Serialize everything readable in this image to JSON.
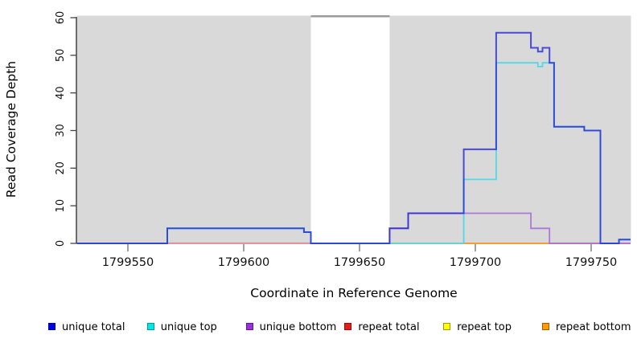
{
  "chart_data": {
    "type": "step-line",
    "title": "",
    "xlabel": "Coordinate in Reference Genome",
    "ylabel": "Read Coverage Depth",
    "x_ticks": [
      1799550,
      1799600,
      1799650,
      1799700,
      1799750
    ],
    "y_ticks": [
      0,
      10,
      20,
      30,
      40,
      50,
      60
    ],
    "x_range": [
      1799528,
      1799767
    ],
    "y_range": [
      0,
      60.5
    ],
    "panel_background": "#d9d9d9",
    "masked_region": {
      "from": 1799629,
      "to": 1799663,
      "fill": "#ffffff",
      "top_edge_color": "#9b9b9b"
    },
    "grid": "off",
    "legend_position": "bottom",
    "series": [
      {
        "name": "repeat total",
        "color": "#e04055",
        "opacity": 0.7,
        "width": 1.5,
        "points": [
          [
            1799528,
            0
          ],
          [
            1799767,
            0
          ]
        ]
      },
      {
        "name": "repeat top",
        "color": "#e8e838",
        "opacity": 0.8,
        "width": 1.5,
        "points": [
          [
            1799663,
            0
          ],
          [
            1799695,
            0
          ]
        ]
      },
      {
        "name": "repeat bottom",
        "color": "#ff9718",
        "opacity": 0.95,
        "width": 1.8,
        "points": [
          [
            1799695,
            0
          ],
          [
            1799732,
            0
          ]
        ]
      },
      {
        "name": "unique bottom",
        "color": "#a35fd6",
        "opacity": 0.8,
        "width": 1.8,
        "points": [
          [
            1799663,
            0
          ],
          [
            1799663,
            4
          ],
          [
            1799671,
            4
          ],
          [
            1799671,
            8
          ],
          [
            1799724,
            8
          ],
          [
            1799724,
            4
          ],
          [
            1799732,
            4
          ],
          [
            1799732,
            0
          ],
          [
            1799767,
            0
          ]
        ]
      },
      {
        "name": "unique top",
        "color": "#3cd7e8",
        "opacity": 0.85,
        "width": 1.8,
        "points": [
          [
            1799528,
            0
          ],
          [
            1799567,
            0
          ],
          [
            1799567,
            4
          ],
          [
            1799626,
            4
          ],
          [
            1799626,
            3
          ],
          [
            1799629,
            3
          ],
          [
            1799629,
            0
          ],
          [
            1799695,
            0
          ],
          [
            1799695,
            17
          ],
          [
            1799709,
            17
          ],
          [
            1799709,
            48
          ],
          [
            1799727,
            48
          ],
          [
            1799727,
            47
          ],
          [
            1799729,
            47
          ],
          [
            1799729,
            48
          ],
          [
            1799734,
            48
          ],
          [
            1799734,
            31
          ],
          [
            1799747,
            31
          ],
          [
            1799747,
            30
          ],
          [
            1799754,
            30
          ],
          [
            1799754,
            0
          ],
          [
            1799762,
            0
          ],
          [
            1799762,
            1
          ],
          [
            1799767,
            1
          ]
        ]
      },
      {
        "name": "unique total",
        "color": "#2022d6",
        "opacity": 0.78,
        "width": 2,
        "points": [
          [
            1799528,
            0
          ],
          [
            1799567,
            0
          ],
          [
            1799567,
            4
          ],
          [
            1799626,
            4
          ],
          [
            1799626,
            3
          ],
          [
            1799629,
            3
          ],
          [
            1799629,
            0
          ],
          [
            1799663,
            0
          ],
          [
            1799663,
            4
          ],
          [
            1799671,
            4
          ],
          [
            1799671,
            8
          ],
          [
            1799695,
            8
          ],
          [
            1799695,
            25
          ],
          [
            1799709,
            25
          ],
          [
            1799709,
            56
          ],
          [
            1799724,
            56
          ],
          [
            1799724,
            52
          ],
          [
            1799727,
            52
          ],
          [
            1799727,
            51
          ],
          [
            1799729,
            51
          ],
          [
            1799729,
            52
          ],
          [
            1799732,
            52
          ],
          [
            1799732,
            48
          ],
          [
            1799734,
            48
          ],
          [
            1799734,
            31
          ],
          [
            1799747,
            31
          ],
          [
            1799747,
            30
          ],
          [
            1799754,
            30
          ],
          [
            1799754,
            0
          ],
          [
            1799762,
            0
          ],
          [
            1799762,
            1
          ],
          [
            1799767,
            1
          ]
        ]
      }
    ],
    "legend": [
      {
        "label": "unique total",
        "fill": "#0000e5",
        "border": "#00009b"
      },
      {
        "label": "unique top",
        "fill": "#00e5e5",
        "border": "#009b9b"
      },
      {
        "label": "unique bottom",
        "fill": "#9b30d9",
        "border": "#5a1a8b"
      },
      {
        "label": "repeat total",
        "fill": "#e51c1c",
        "border": "#8b1010"
      },
      {
        "label": "repeat top",
        "fill": "#ffff00",
        "border": "#9b9b00"
      },
      {
        "label": "repeat bottom",
        "fill": "#ff9c00",
        "border": "#9b5e00"
      }
    ],
    "axis_colors": {
      "y_axis_line": "#2a2a2a",
      "y_tick": "#444444",
      "x_tick": "#8a8a8a",
      "tick_label": "#111111"
    }
  }
}
